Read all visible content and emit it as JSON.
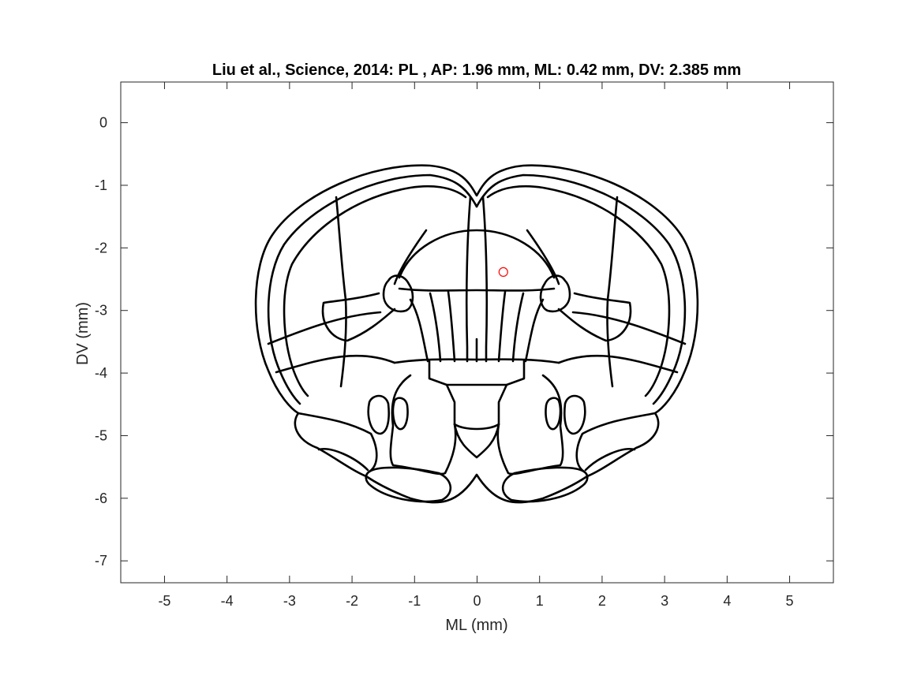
{
  "chart_data": {
    "type": "scatter",
    "title": "Liu et al., Science, 2014: PL , AP: 1.96 mm, ML: 0.42 mm, DV: 2.385 mm",
    "xlabel": "ML (mm)",
    "ylabel": "DV (mm)",
    "xlim": [
      -5.7,
      5.7
    ],
    "ylim": [
      -7.35,
      0.65
    ],
    "xticks": [
      -5,
      -4,
      -3,
      -2,
      -1,
      0,
      1,
      2,
      3,
      4,
      5
    ],
    "yticks": [
      0,
      -1,
      -2,
      -3,
      -4,
      -5,
      -6,
      -7
    ],
    "grid": false,
    "series": [
      {
        "marker": "circle",
        "color": "#ff0000",
        "x": [
          0.42
        ],
        "y": [
          -2.385
        ]
      }
    ],
    "background_drawing": "coronal brain atlas section outline"
  }
}
